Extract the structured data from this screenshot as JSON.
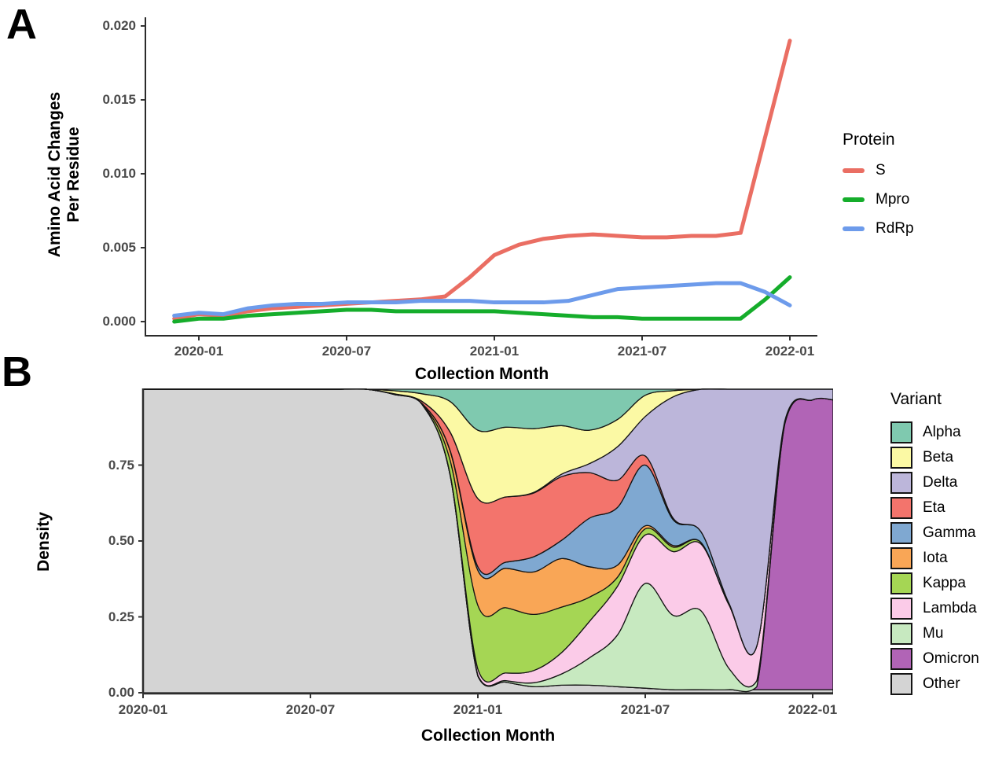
{
  "panel_a": {
    "label": "A",
    "y_axis_title_line1": "Amino Acid Changes",
    "y_axis_title_line2": "Per Residue",
    "x_axis_title": "Collection Month",
    "y_tick_labels": [
      "0.020",
      "0.015",
      "0.010",
      "0.005",
      "0.000"
    ],
    "x_tick_labels": [
      "2020-01",
      "2020-07",
      "2021-01",
      "2021-07",
      "2022-01"
    ],
    "legend": {
      "title": "Protein",
      "items": [
        {
          "label": "S",
          "color": "#EA6E63"
        },
        {
          "label": "Mpro",
          "color": "#15AD2B"
        },
        {
          "label": "RdRp",
          "color": "#6D9BEB"
        }
      ]
    }
  },
  "panel_b": {
    "label": "B",
    "y_axis_title": "Density",
    "x_axis_title": "Collection Month",
    "y_tick_labels": [
      "0.75",
      "0.50",
      "0.25",
      "0.00"
    ],
    "x_tick_labels": [
      "2020-01",
      "2020-07",
      "2021-01",
      "2021-07",
      "2022-01"
    ],
    "legend": {
      "title": "Variant",
      "items": [
        {
          "label": "Alpha",
          "color": "#7FC9AF"
        },
        {
          "label": "Beta",
          "color": "#FBF9A4"
        },
        {
          "label": "Delta",
          "color": "#BCB6DA"
        },
        {
          "label": "Eta",
          "color": "#F3746C"
        },
        {
          "label": "Gamma",
          "color": "#7FA8D1"
        },
        {
          "label": "Iota",
          "color": "#F9A656"
        },
        {
          "label": "Kappa",
          "color": "#A5D654"
        },
        {
          "label": "Lambda",
          "color": "#FBCBE8"
        },
        {
          "label": "Mu",
          "color": "#C7E9C0"
        },
        {
          "label": "Omicron",
          "color": "#B164B6"
        },
        {
          "label": "Other",
          "color": "#D4D4D4"
        }
      ]
    }
  },
  "chart_data": [
    {
      "id": "amino_acid_changes",
      "type": "line",
      "title": "",
      "xlabel": "Collection Month",
      "ylabel": "Amino Acid Changes Per Residue",
      "ylim": [
        0,
        0.02
      ],
      "y_ticks": [
        0.0,
        0.005,
        0.01,
        0.015,
        0.02
      ],
      "grid": false,
      "legend_title": "Protein",
      "legend_position": "right",
      "x": [
        "2019-12",
        "2020-01",
        "2020-02",
        "2020-03",
        "2020-04",
        "2020-05",
        "2020-06",
        "2020-07",
        "2020-08",
        "2020-09",
        "2020-10",
        "2020-11",
        "2020-12",
        "2021-01",
        "2021-02",
        "2021-03",
        "2021-04",
        "2021-05",
        "2021-06",
        "2021-07",
        "2021-08",
        "2021-09",
        "2021-10",
        "2021-11",
        "2021-12",
        "2022-01"
      ],
      "series": [
        {
          "name": "S",
          "color": "#EA6E63",
          "values": [
            0.0002,
            0.0005,
            0.0004,
            0.0007,
            0.0009,
            0.001,
            0.0011,
            0.0012,
            0.0013,
            0.0014,
            0.0015,
            0.0017,
            0.003,
            0.0045,
            0.0052,
            0.0056,
            0.0058,
            0.0059,
            0.0058,
            0.0057,
            0.0057,
            0.0058,
            0.0058,
            0.006,
            0.0125,
            0.019
          ]
        },
        {
          "name": "Mpro",
          "color": "#15AD2B",
          "values": [
            0.0,
            0.0002,
            0.0002,
            0.0004,
            0.0005,
            0.0006,
            0.0007,
            0.0008,
            0.0008,
            0.0007,
            0.0007,
            0.0007,
            0.0007,
            0.0007,
            0.0006,
            0.0005,
            0.0004,
            0.0003,
            0.0003,
            0.0002,
            0.0002,
            0.0002,
            0.0002,
            0.0002,
            0.0015,
            0.003
          ]
        },
        {
          "name": "RdRp",
          "color": "#6D9BEB",
          "values": [
            0.0004,
            0.0006,
            0.0005,
            0.0009,
            0.0011,
            0.0012,
            0.0012,
            0.0013,
            0.0013,
            0.0013,
            0.0014,
            0.0014,
            0.0014,
            0.0013,
            0.0013,
            0.0013,
            0.0014,
            0.0018,
            0.0022,
            0.0023,
            0.0024,
            0.0025,
            0.0026,
            0.0026,
            0.002,
            0.0011
          ]
        }
      ]
    },
    {
      "id": "variant_density",
      "type": "area",
      "title": "",
      "xlabel": "Collection Month",
      "ylabel": "Density",
      "ylim": [
        0,
        1
      ],
      "y_ticks": [
        0.0,
        0.25,
        0.5,
        0.75
      ],
      "grid": false,
      "legend_title": "Variant",
      "legend_position": "right",
      "stack_order_bottom_to_top": [
        "Other",
        "Omicron",
        "Mu",
        "Lambda",
        "Kappa",
        "Iota",
        "Gamma",
        "Eta",
        "Delta",
        "Beta",
        "Alpha"
      ],
      "x": [
        "2020-01",
        "2020-02",
        "2020-03",
        "2020-04",
        "2020-05",
        "2020-06",
        "2020-07",
        "2020-08",
        "2020-09",
        "2020-10",
        "2020-11",
        "2020-12",
        "2021-01",
        "2021-02",
        "2021-03",
        "2021-04",
        "2021-05",
        "2021-06",
        "2021-07",
        "2021-08",
        "2021-09",
        "2021-10",
        "2021-11",
        "2021-12",
        "2022-01"
      ],
      "series": [
        {
          "name": "Alpha",
          "color": "#7FC9AF",
          "values": [
            0,
            0,
            0,
            0,
            0,
            0,
            0,
            0,
            0,
            0.005,
            0.015,
            0.04,
            0.135,
            0.125,
            0.13,
            0.12,
            0.135,
            0.1,
            0.02,
            0.005,
            0,
            0,
            0,
            0,
            0
          ]
        },
        {
          "name": "Beta",
          "color": "#FBF9A4",
          "values": [
            0,
            0,
            0,
            0,
            0,
            0,
            0,
            0,
            0,
            0.01,
            0.025,
            0.1,
            0.225,
            0.23,
            0.21,
            0.16,
            0.11,
            0.09,
            0.07,
            0.02,
            0,
            0,
            0,
            0,
            0
          ]
        },
        {
          "name": "Delta",
          "color": "#BCB6DA",
          "values": [
            0,
            0,
            0,
            0,
            0,
            0,
            0,
            0,
            0,
            0,
            0,
            0,
            0,
            0,
            0.002,
            0.008,
            0.03,
            0.11,
            0.13,
            0.4,
            0.47,
            0.705,
            0.845,
            0.105,
            0.035
          ]
        },
        {
          "name": "Eta",
          "color": "#F3746C",
          "values": [
            0,
            0,
            0,
            0,
            0,
            0,
            0,
            0,
            0,
            0.002,
            0.007,
            0.06,
            0.225,
            0.215,
            0.21,
            0.21,
            0.15,
            0.09,
            0.03,
            0.005,
            0,
            0,
            0,
            0,
            0
          ]
        },
        {
          "name": "Gamma",
          "color": "#7FA8D1",
          "values": [
            0,
            0,
            0,
            0,
            0,
            0,
            0,
            0,
            0,
            0,
            0,
            0.002,
            0.012,
            0.02,
            0.05,
            0.06,
            0.16,
            0.19,
            0.2,
            0.085,
            0.035,
            0.005,
            0,
            0,
            0
          ]
        },
        {
          "name": "Iota",
          "color": "#F9A656",
          "values": [
            0,
            0,
            0,
            0,
            0,
            0,
            0,
            0,
            0,
            0,
            0.002,
            0.03,
            0.115,
            0.13,
            0.14,
            0.16,
            0.1,
            0.04,
            0.01,
            0.005,
            0,
            0,
            0,
            0,
            0
          ]
        },
        {
          "name": "Kappa",
          "color": "#A5D654",
          "values": [
            0,
            0,
            0,
            0,
            0,
            0,
            0,
            0,
            0,
            0,
            0.001,
            0.045,
            0.21,
            0.215,
            0.185,
            0.15,
            0.08,
            0.03,
            0.02,
            0.015,
            0.005,
            0,
            0,
            0,
            0
          ]
        },
        {
          "name": "Lambda",
          "color": "#FBCBE8",
          "values": [
            0,
            0,
            0,
            0,
            0,
            0,
            0,
            0,
            0,
            0,
            0,
            0.003,
            0.02,
            0.025,
            0.04,
            0.07,
            0.12,
            0.16,
            0.16,
            0.21,
            0.22,
            0.21,
            0.115,
            0.005,
            0
          ]
        },
        {
          "name": "Mu",
          "color": "#C7E9C0",
          "values": [
            0,
            0,
            0,
            0,
            0,
            0,
            0,
            0,
            0,
            0,
            0,
            0,
            0.003,
            0.005,
            0.013,
            0.037,
            0.09,
            0.17,
            0.345,
            0.245,
            0.26,
            0.07,
            0.02,
            0.005,
            0
          ]
        },
        {
          "name": "Omicron",
          "color": "#B164B6",
          "values": [
            0,
            0,
            0,
            0,
            0,
            0,
            0,
            0,
            0,
            0,
            0,
            0,
            0,
            0,
            0,
            0,
            0,
            0,
            0,
            0,
            0,
            0,
            0.01,
            0.875,
            0.955
          ]
        },
        {
          "name": "Other",
          "color": "#D4D4D4",
          "values": [
            1,
            1,
            1,
            1,
            1,
            1,
            1,
            1,
            1,
            0.983,
            0.95,
            0.72,
            0.055,
            0.035,
            0.02,
            0.025,
            0.025,
            0.02,
            0.015,
            0.01,
            0.01,
            0.01,
            0.01,
            0.01,
            0.01
          ]
        }
      ]
    }
  ]
}
